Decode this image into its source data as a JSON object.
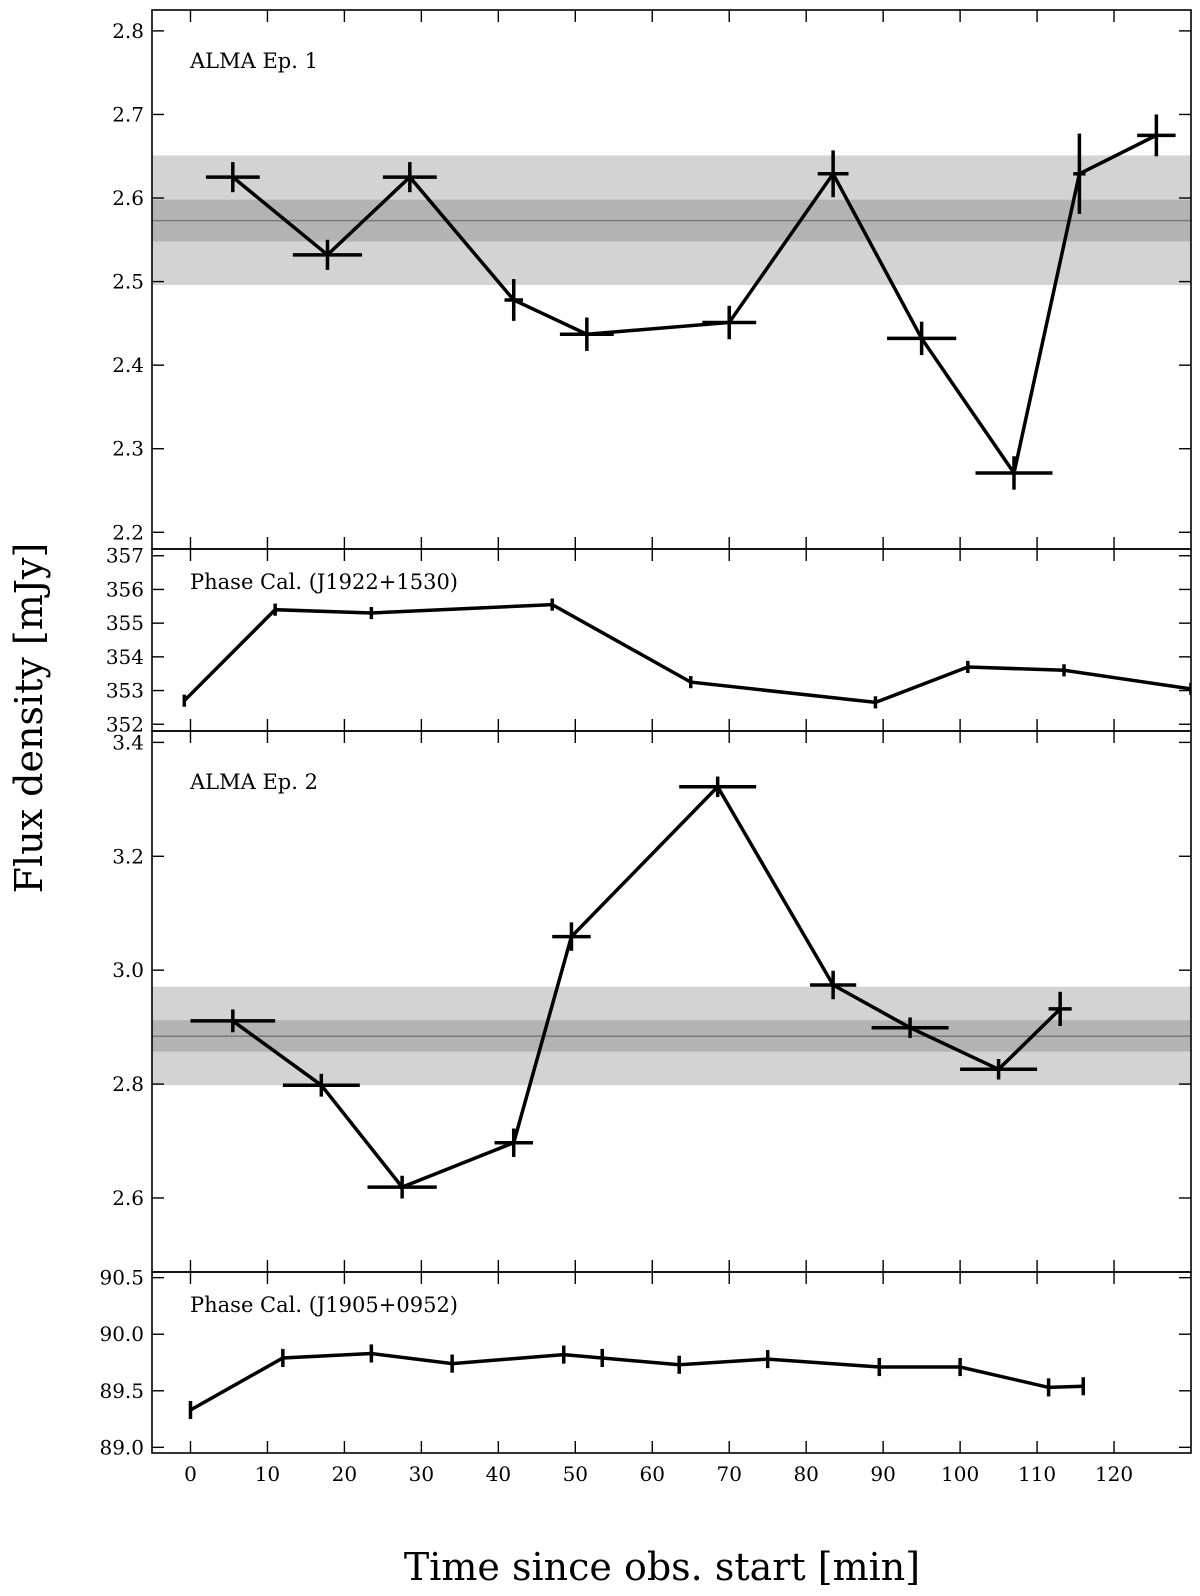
{
  "chart_data": {
    "type": "line",
    "xlabel": "Time since obs. start [min]",
    "ylabel": "Flux density [mJy]",
    "xlim": [
      -5,
      130
    ],
    "xticks": [
      0,
      10,
      20,
      30,
      40,
      50,
      60,
      70,
      80,
      90,
      100,
      110,
      120
    ],
    "panels": [
      {
        "id": "ep1",
        "label": "ALMA Ep. 1",
        "ylim": [
          2.18,
          2.825
        ],
        "yticks": [
          2.2,
          2.3,
          2.4,
          2.5,
          2.6,
          2.7,
          2.8
        ],
        "ytick_decimals": 1,
        "band": {
          "mean": 2.573,
          "inner": [
            2.548,
            2.598
          ],
          "outer": [
            2.496,
            2.651
          ]
        },
        "points": [
          {
            "x": 5.5,
            "y": 2.625,
            "xerr": 3.5,
            "yerr": 0.018
          },
          {
            "x": 17.8,
            "y": 2.532,
            "xerr": 4.5,
            "yerr": 0.018
          },
          {
            "x": 28.5,
            "y": 2.625,
            "xerr": 3.5,
            "yerr": 0.018
          },
          {
            "x": 42.0,
            "y": 2.478,
            "xerr": 1.2,
            "yerr": 0.025
          },
          {
            "x": 51.5,
            "y": 2.437,
            "xerr": 3.5,
            "yerr": 0.02
          },
          {
            "x": 70.0,
            "y": 2.451,
            "xerr": 3.5,
            "yerr": 0.02
          },
          {
            "x": 83.5,
            "y": 2.629,
            "xerr": 2.0,
            "yerr": 0.028
          },
          {
            "x": 95.0,
            "y": 2.432,
            "xerr": 4.5,
            "yerr": 0.02
          },
          {
            "x": 107.0,
            "y": 2.271,
            "xerr": 5.0,
            "yerr": 0.02
          },
          {
            "x": 115.5,
            "y": 2.629,
            "xerr": 0.8,
            "yerr": 0.048
          },
          {
            "x": 125.5,
            "y": 2.675,
            "xerr": 2.5,
            "yerr": 0.025
          }
        ]
      },
      {
        "id": "cal1",
        "label": "Phase Cal. (J1922+1530)",
        "ylim": [
          351.8,
          357.2
        ],
        "yticks": [
          352,
          353,
          354,
          355,
          356,
          357
        ],
        "ytick_decimals": 0,
        "band": null,
        "points": [
          {
            "x": -0.8,
            "y": 352.7,
            "xerr": 0,
            "yerr": 0.18
          },
          {
            "x": 11.0,
            "y": 355.4,
            "xerr": 0,
            "yerr": 0.18
          },
          {
            "x": 23.5,
            "y": 355.3,
            "xerr": 0,
            "yerr": 0.18
          },
          {
            "x": 47.0,
            "y": 355.55,
            "xerr": 0,
            "yerr": 0.18
          },
          {
            "x": 65.0,
            "y": 353.25,
            "xerr": 0,
            "yerr": 0.18
          },
          {
            "x": 89.0,
            "y": 352.65,
            "xerr": 0,
            "yerr": 0.18
          },
          {
            "x": 101.0,
            "y": 353.7,
            "xerr": 0,
            "yerr": 0.18
          },
          {
            "x": 113.5,
            "y": 353.6,
            "xerr": 0,
            "yerr": 0.18
          },
          {
            "x": 130.0,
            "y": 353.05,
            "xerr": 0,
            "yerr": 0.18
          }
        ]
      },
      {
        "id": "ep2",
        "label": "ALMA Ep. 2",
        "ylim": [
          2.47,
          3.42
        ],
        "yticks": [
          2.6,
          2.8,
          3.0,
          3.2,
          3.4
        ],
        "ytick_decimals": 1,
        "band": {
          "mean": 2.884,
          "inner": [
            2.857,
            2.912
          ],
          "outer": [
            2.798,
            2.971
          ]
        },
        "points": [
          {
            "x": 5.5,
            "y": 2.911,
            "xerr": 5.5,
            "yerr": 0.02
          },
          {
            "x": 17.0,
            "y": 2.798,
            "xerr": 5.0,
            "yerr": 0.02
          },
          {
            "x": 27.5,
            "y": 2.619,
            "xerr": 4.5,
            "yerr": 0.02
          },
          {
            "x": 42.0,
            "y": 2.697,
            "xerr": 2.5,
            "yerr": 0.025
          },
          {
            "x": 49.5,
            "y": 3.059,
            "xerr": 2.5,
            "yerr": 0.025
          },
          {
            "x": 68.5,
            "y": 3.322,
            "xerr": 5.0,
            "yerr": 0.018
          },
          {
            "x": 83.5,
            "y": 2.974,
            "xerr": 3.0,
            "yerr": 0.025
          },
          {
            "x": 93.5,
            "y": 2.899,
            "xerr": 5.0,
            "yerr": 0.018
          },
          {
            "x": 105.0,
            "y": 2.826,
            "xerr": 5.0,
            "yerr": 0.018
          },
          {
            "x": 113.0,
            "y": 2.932,
            "xerr": 1.5,
            "yerr": 0.03
          }
        ]
      },
      {
        "id": "cal2",
        "label": "Phase Cal. (J1905+0952)",
        "ylim": [
          88.95,
          90.55
        ],
        "yticks": [
          89.0,
          89.5,
          90.0,
          90.5
        ],
        "ytick_decimals": 1,
        "band": null,
        "points": [
          {
            "x": 0.0,
            "y": 89.33,
            "xerr": 0,
            "yerr": 0.08
          },
          {
            "x": 12.0,
            "y": 89.79,
            "xerr": 0,
            "yerr": 0.08
          },
          {
            "x": 23.5,
            "y": 89.83,
            "xerr": 0,
            "yerr": 0.08
          },
          {
            "x": 34.0,
            "y": 89.74,
            "xerr": 0,
            "yerr": 0.08
          },
          {
            "x": 48.5,
            "y": 89.82,
            "xerr": 0,
            "yerr": 0.08
          },
          {
            "x": 53.5,
            "y": 89.79,
            "xerr": 0,
            "yerr": 0.08
          },
          {
            "x": 63.5,
            "y": 89.73,
            "xerr": 0,
            "yerr": 0.08
          },
          {
            "x": 75.0,
            "y": 89.78,
            "xerr": 0,
            "yerr": 0.08
          },
          {
            "x": 89.5,
            "y": 89.71,
            "xerr": 0,
            "yerr": 0.08
          },
          {
            "x": 100.0,
            "y": 89.71,
            "xerr": 0,
            "yerr": 0.08
          },
          {
            "x": 111.5,
            "y": 89.53,
            "xerr": 0,
            "yerr": 0.08
          },
          {
            "x": 116.0,
            "y": 89.54,
            "xerr": 0,
            "yerr": 0.08
          }
        ]
      }
    ]
  }
}
